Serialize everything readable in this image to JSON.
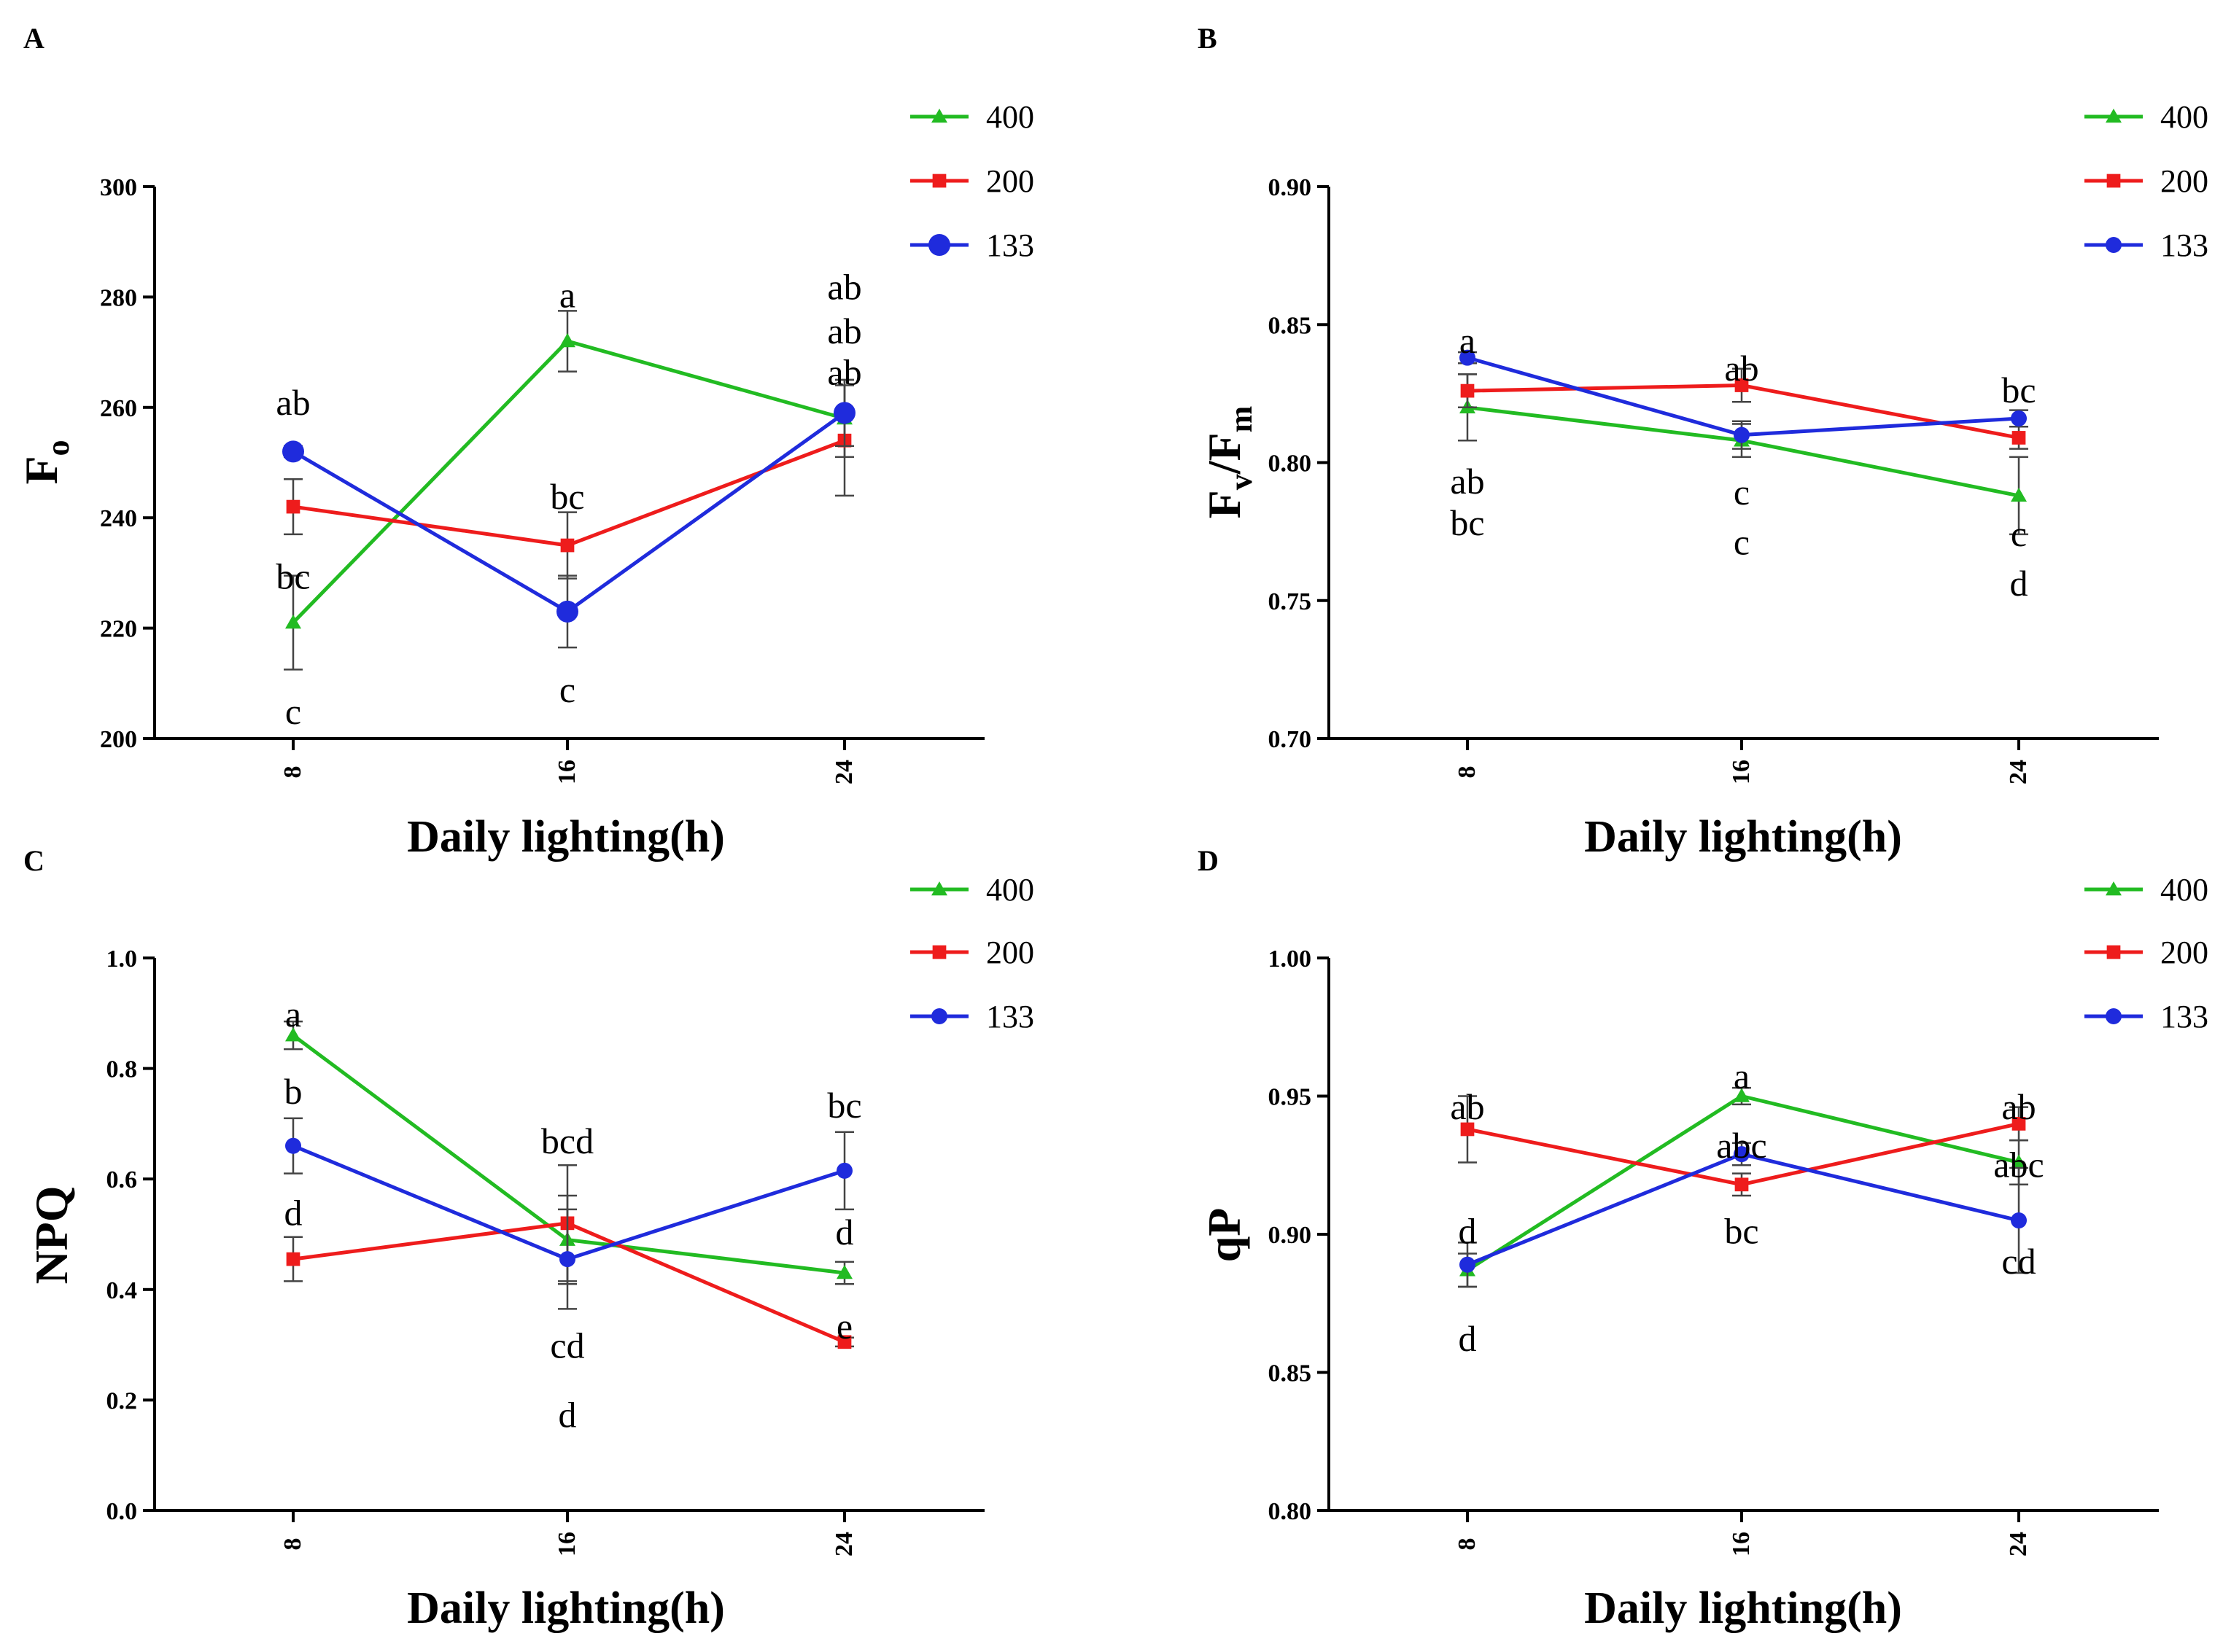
{
  "chart_data": [
    {
      "panel": "A",
      "type": "line",
      "ylabel": "F",
      "ylabel_sub": "o",
      "xlabel": "Daily lighting(h)",
      "categories": [
        "8",
        "16",
        "24"
      ],
      "ylim": [
        200,
        300
      ],
      "yticks": [
        "200",
        "220",
        "240",
        "260",
        "280",
        "300"
      ],
      "ytick_values": [
        200,
        220,
        240,
        260,
        280,
        300
      ],
      "legend": "top-right",
      "series": [
        {
          "name": "400",
          "color": "#22bb22",
          "marker": "triangle",
          "values": [
            221,
            272,
            258
          ],
          "errors": [
            8.5,
            5.5,
            7
          ]
        },
        {
          "name": "200",
          "color": "#ee1c1c",
          "marker": "square",
          "values": [
            242,
            235,
            254
          ],
          "errors": [
            5,
            6,
            10
          ]
        },
        {
          "name": "133",
          "color": "#1f2bdc",
          "marker": "circle",
          "values": [
            252,
            223,
            259
          ],
          "errors": [
            1,
            6.5,
            6
          ]
        }
      ],
      "annotations": [
        {
          "text": "ab",
          "cat": 0,
          "y": 261
        },
        {
          "text": "bc",
          "cat": 0,
          "y": 229.5
        },
        {
          "text": "c",
          "cat": 0,
          "y": 205
        },
        {
          "text": "a",
          "cat": 1,
          "y": 280.5
        },
        {
          "text": "bc",
          "cat": 1,
          "y": 244
        },
        {
          "text": "c",
          "cat": 1,
          "y": 209
        },
        {
          "text": "ab",
          "cat": 2,
          "y": 282
        },
        {
          "text": "ab",
          "cat": 2,
          "y": 274
        },
        {
          "text": "ab",
          "cat": 2,
          "y": 266.5
        }
      ]
    },
    {
      "panel": "B",
      "type": "line",
      "ylabel": "F",
      "ylabel_sub": "v",
      "ylabel_slash": "/F",
      "ylabel_sub2": "m",
      "xlabel": "Daily lighting(h)",
      "categories": [
        "8",
        "16",
        "24"
      ],
      "ylim": [
        0.7,
        0.9
      ],
      "yticks": [
        "0.70",
        "0.75",
        "0.80",
        "0.85",
        "0.90"
      ],
      "ytick_values": [
        0.7,
        0.75,
        0.8,
        0.85,
        0.9
      ],
      "legend": "top-right",
      "series": [
        {
          "name": "400",
          "color": "#22bb22",
          "marker": "triangle",
          "values": [
            0.82,
            0.808,
            0.788
          ],
          "errors": [
            0.012,
            0.006,
            0.014
          ]
        },
        {
          "name": "200",
          "color": "#ee1c1c",
          "marker": "square",
          "values": [
            0.826,
            0.828,
            0.809
          ],
          "errors": [
            0.006,
            0.006,
            0.004
          ]
        },
        {
          "name": "133",
          "color": "#1f2bdc",
          "marker": "circle",
          "values": [
            0.838,
            0.81,
            0.816
          ],
          "errors": [
            0.002,
            0.005,
            0.003
          ]
        }
      ],
      "annotations": [
        {
          "text": "a",
          "cat": 0,
          "y": 0.8445
        },
        {
          "text": "ab",
          "cat": 0,
          "y": 0.7935
        },
        {
          "text": "bc",
          "cat": 0,
          "y": 0.7785
        },
        {
          "text": "ab",
          "cat": 1,
          "y": 0.8345
        },
        {
          "text": "c",
          "cat": 1,
          "y": 0.7895
        },
        {
          "text": "c",
          "cat": 1,
          "y": 0.7715
        },
        {
          "text": "bc",
          "cat": 2,
          "y": 0.8265
        },
        {
          "text": "c",
          "cat": 2,
          "y": 0.7745
        },
        {
          "text": "d",
          "cat": 2,
          "y": 0.7565
        }
      ]
    },
    {
      "panel": "C",
      "type": "line",
      "ylabel": "NPQ",
      "xlabel": "Daily lighting(h)",
      "categories": [
        "8",
        "16",
        "24"
      ],
      "ylim": [
        0,
        1
      ],
      "yticks": [
        "0.0",
        "0.2",
        "0.4",
        "0.6",
        "0.8",
        "1.0"
      ],
      "ytick_values": [
        0,
        0.2,
        0.4,
        0.6,
        0.8,
        1.0
      ],
      "legend": "top-right",
      "series": [
        {
          "name": "400",
          "color": "#22bb22",
          "marker": "triangle",
          "values": [
            0.86,
            0.49,
            0.43
          ],
          "errors": [
            0.025,
            0.08,
            0.02
          ]
        },
        {
          "name": "200",
          "color": "#ee1c1c",
          "marker": "square",
          "values": [
            0.455,
            0.52,
            0.305
          ],
          "errors": [
            0.04,
            0.105,
            0.008
          ]
        },
        {
          "name": "133",
          "color": "#1f2bdc",
          "marker": "circle",
          "values": [
            0.66,
            0.455,
            0.615
          ],
          "errors": [
            0.05,
            0.09,
            0.07
          ]
        }
      ],
      "annotations": [
        {
          "text": "a",
          "cat": 0,
          "y": 0.9
        },
        {
          "text": "b",
          "cat": 0,
          "y": 0.76
        },
        {
          "text": "d",
          "cat": 0,
          "y": 0.54
        },
        {
          "text": "bcd",
          "cat": 1,
          "y": 0.67
        },
        {
          "text": "cd",
          "cat": 1,
          "y": 0.3
        },
        {
          "text": "d",
          "cat": 1,
          "y": 0.175
        },
        {
          "text": "bc",
          "cat": 2,
          "y": 0.735
        },
        {
          "text": "d",
          "cat": 2,
          "y": 0.505
        },
        {
          "text": "e",
          "cat": 2,
          "y": 0.335
        }
      ]
    },
    {
      "panel": "D",
      "type": "line",
      "ylabel": "qP",
      "xlabel": "Daily lighting(h)",
      "categories": [
        "8",
        "16",
        "24"
      ],
      "ylim": [
        0.8,
        1.0
      ],
      "yticks": [
        "0.80",
        "0.85",
        "0.90",
        "0.95",
        "1.00"
      ],
      "ytick_values": [
        0.8,
        0.85,
        0.9,
        0.95,
        1.0
      ],
      "legend": "top-right",
      "series": [
        {
          "name": "400",
          "color": "#22bb22",
          "marker": "triangle",
          "values": [
            0.887,
            0.95,
            0.926
          ],
          "errors": [
            0.006,
            0.003,
            0.008
          ]
        },
        {
          "name": "200",
          "color": "#ee1c1c",
          "marker": "square",
          "values": [
            0.938,
            0.918,
            0.94
          ],
          "errors": [
            0.012,
            0.004,
            0.006
          ]
        },
        {
          "name": "133",
          "color": "#1f2bdc",
          "marker": "circle",
          "values": [
            0.889,
            0.929,
            0.905
          ],
          "errors": [
            0.008,
            0.004,
            0.019
          ]
        }
      ],
      "annotations": [
        {
          "text": "ab",
          "cat": 0,
          "y": 0.9465
        },
        {
          "text": "d",
          "cat": 0,
          "y": 0.9015
        },
        {
          "text": "d",
          "cat": 0,
          "y": 0.8625
        },
        {
          "text": "a",
          "cat": 1,
          "y": 0.9575
        },
        {
          "text": "abc",
          "cat": 1,
          "y": 0.9325
        },
        {
          "text": "bc",
          "cat": 1,
          "y": 0.9015
        },
        {
          "text": "ab",
          "cat": 2,
          "y": 0.9465
        },
        {
          "text": "abc",
          "cat": 2,
          "y": 0.9255
        },
        {
          "text": "cd",
          "cat": 2,
          "y": 0.8905
        }
      ]
    }
  ]
}
